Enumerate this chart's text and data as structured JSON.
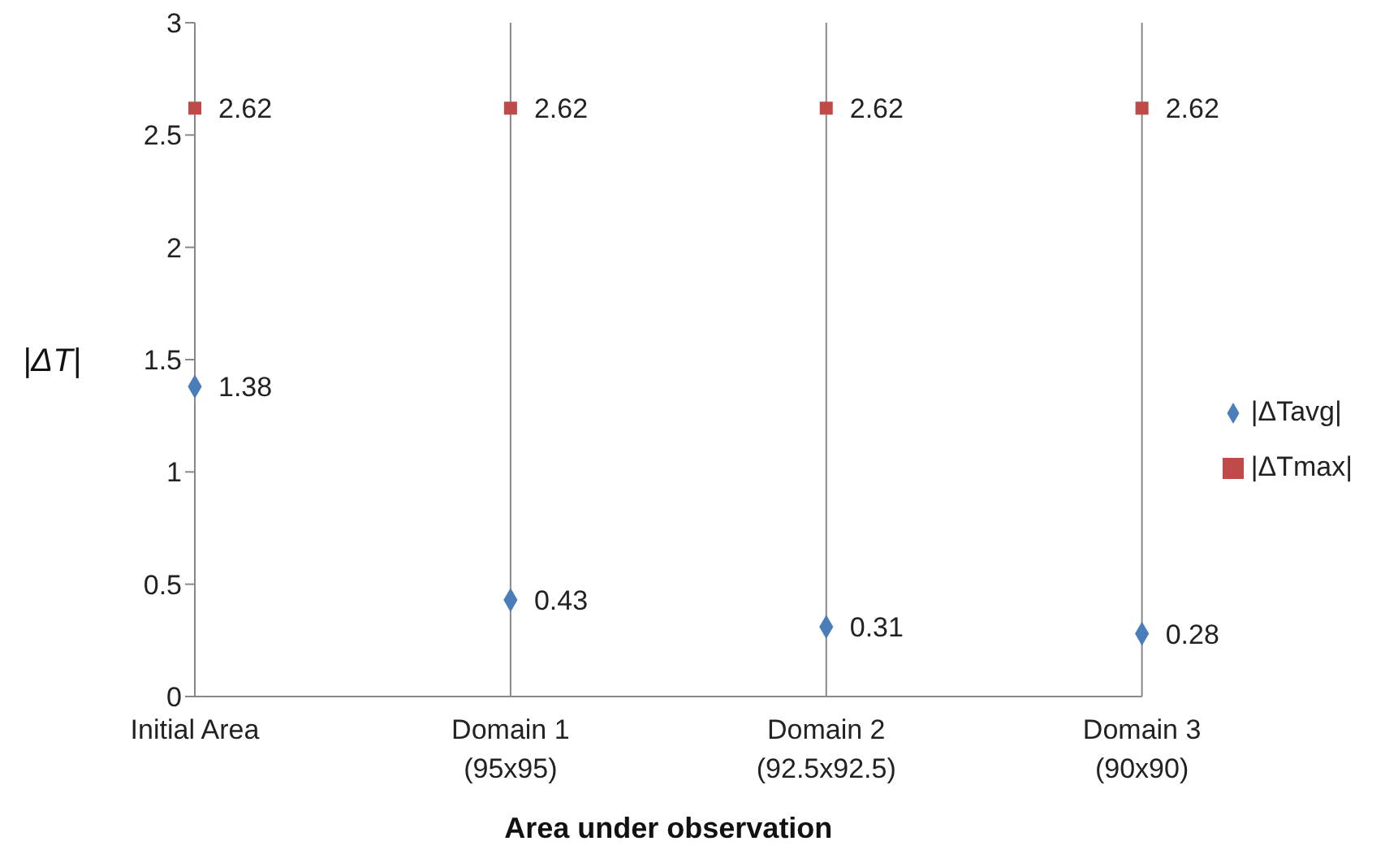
{
  "chart_data": {
    "type": "scatter",
    "xlabel": "Area under observation",
    "ylabel": "|ΔT|",
    "categories": [
      "Initial Area",
      "Domain 1\n(95x95)",
      "Domain 2\n(92.5x92.5)",
      "Domain 3\n(90x90)"
    ],
    "series": [
      {
        "name": "|ΔTavg|",
        "color": "#4a7ebb",
        "marker": "diamond",
        "values": [
          1.38,
          0.43,
          0.31,
          0.28
        ]
      },
      {
        "name": "|ΔTmax|",
        "color": "#be4b48",
        "marker": "square",
        "values": [
          2.62,
          2.62,
          2.62,
          2.62
        ]
      }
    ],
    "ylim": [
      0,
      3
    ],
    "yticks": [
      0,
      0.5,
      1,
      1.5,
      2,
      2.5,
      3
    ],
    "grid": "x",
    "legend": "right",
    "data_labels": true
  }
}
